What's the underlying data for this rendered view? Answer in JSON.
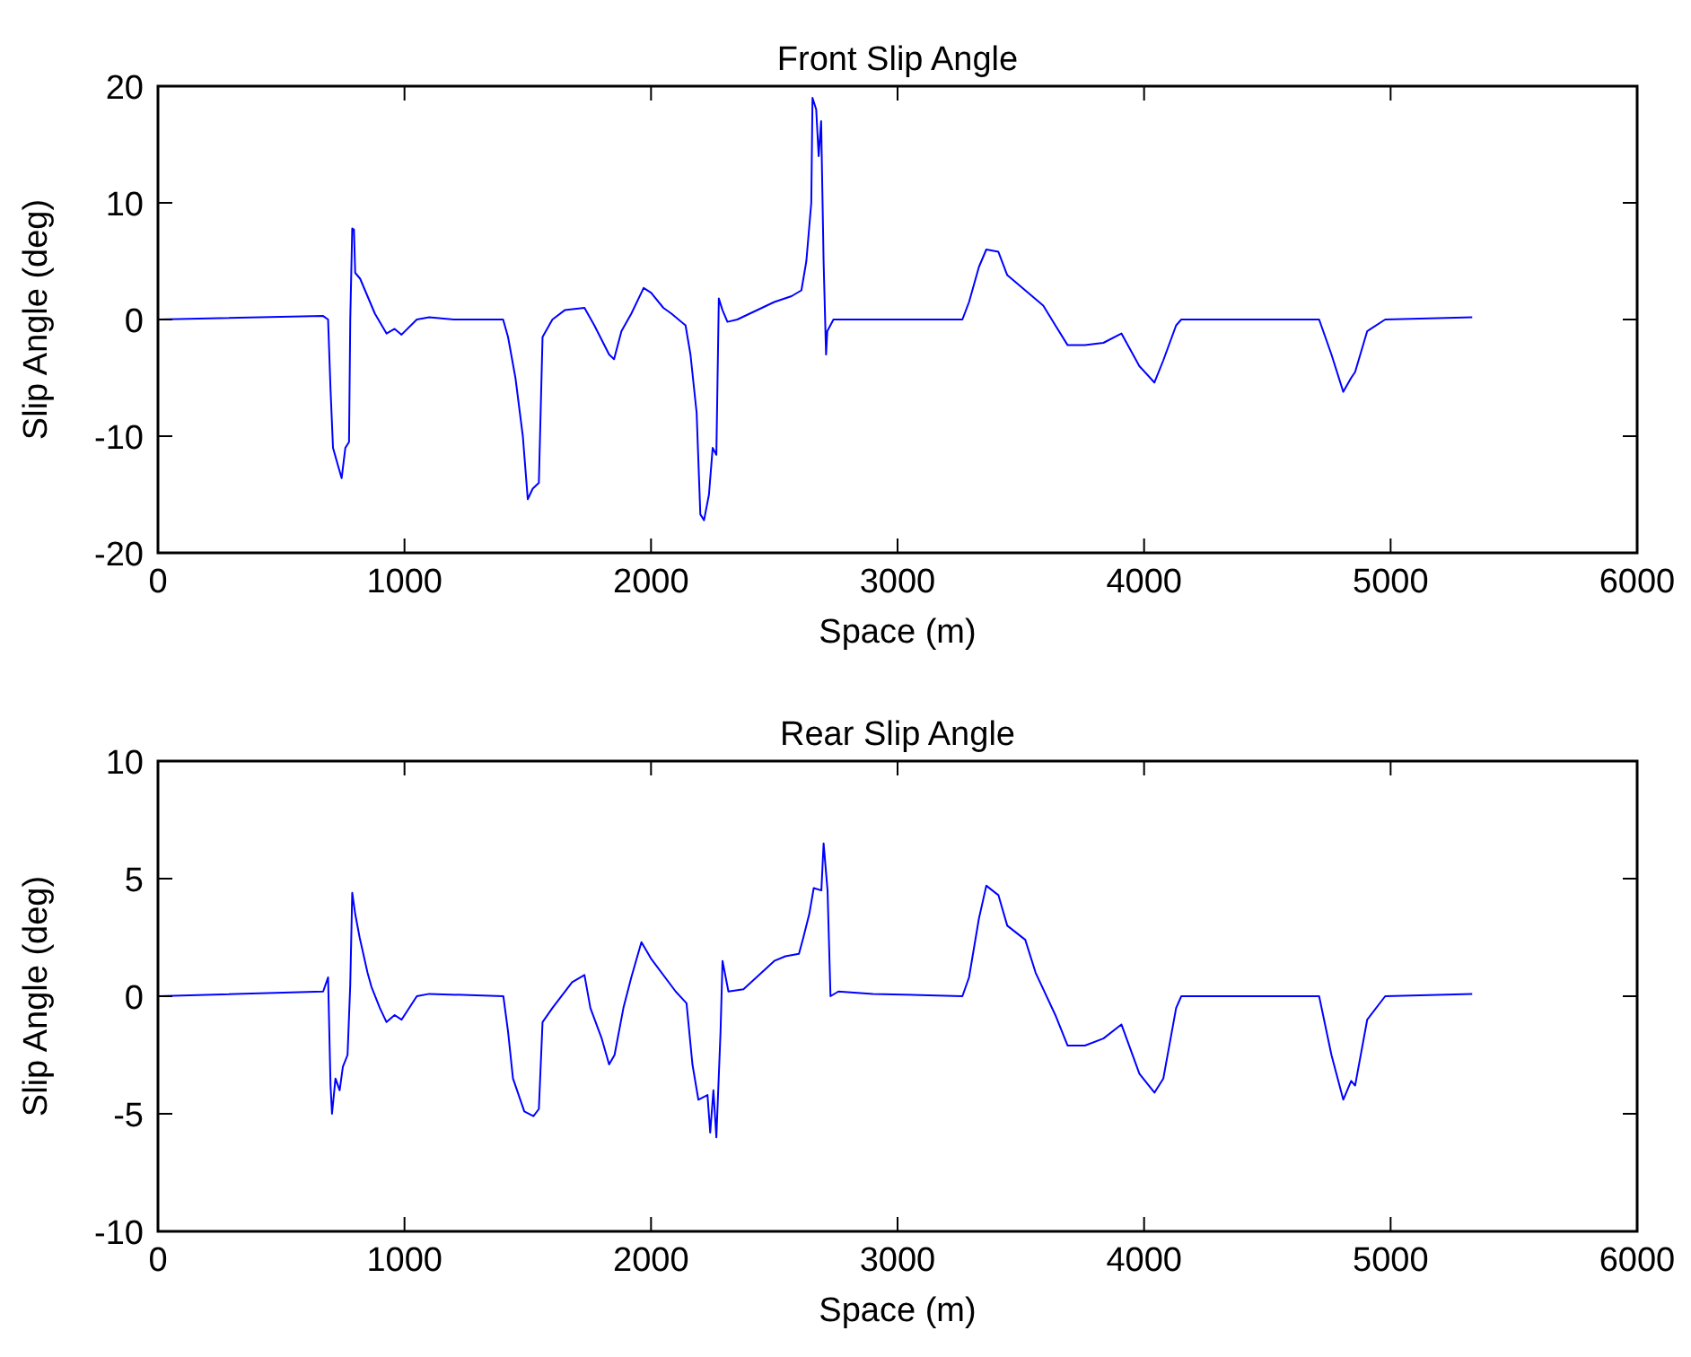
{
  "chart_data": [
    {
      "type": "line",
      "title": "Front Slip Angle",
      "xlabel": "Space (m)",
      "ylabel": "Slip Angle (deg)",
      "xlim": [
        0,
        6000
      ],
      "xticks": [
        0,
        1000,
        2000,
        3000,
        4000,
        5000,
        6000
      ],
      "ylim": [
        -20,
        20
      ],
      "yticks": [
        -20,
        -10,
        0,
        10,
        20
      ],
      "series": [
        {
          "color": "#0000ff",
          "x": [
            0,
            670,
            690,
            700,
            710,
            730,
            745,
            760,
            775,
            780,
            788,
            795,
            800,
            820,
            850,
            880,
            927,
            960,
            988,
            1050,
            1100,
            1200,
            1400,
            1420,
            1450,
            1480,
            1500,
            1520,
            1545,
            1560,
            1600,
            1650,
            1730,
            1770,
            1830,
            1850,
            1880,
            1920,
            1970,
            2000,
            2050,
            2083,
            2140,
            2160,
            2185,
            2200,
            2215,
            2235,
            2250,
            2265,
            2275,
            2290,
            2310,
            2350,
            2400,
            2500,
            2570,
            2610,
            2630,
            2650,
            2655,
            2670,
            2680,
            2690,
            2700,
            2710,
            2715,
            2740,
            2800,
            2861,
            3263,
            3290,
            3330,
            3360,
            3409,
            3445,
            3518,
            3591,
            3640,
            3690,
            3760,
            3835,
            3908,
            3981,
            4042,
            4078,
            4130,
            4151,
            4300,
            4710,
            4760,
            4808,
            4840,
            4856,
            4905,
            4978,
            5331
          ],
          "values": [
            0,
            0.3,
            0,
            -6,
            -11,
            -12.5,
            -13.6,
            -11,
            -10.5,
            0,
            7.8,
            7.7,
            4,
            3.5,
            2,
            0.5,
            -1.2,
            -0.8,
            -1.3,
            0,
            0.2,
            0,
            0,
            -1.5,
            -5,
            -10,
            -15.4,
            -14.5,
            -14,
            -1.5,
            0,
            0.8,
            1,
            -0.5,
            -3,
            -3.4,
            -1,
            0.5,
            2.7,
            2.3,
            1,
            0.5,
            -0.5,
            -3,
            -8,
            -16.7,
            -17.2,
            -15,
            -11,
            -11.6,
            1.8,
            0.8,
            -0.2,
            0,
            0.5,
            1.5,
            2,
            2.5,
            5,
            10,
            19,
            18,
            14,
            17,
            5,
            -3,
            -1,
            0,
            0,
            0,
            0,
            1.5,
            4.5,
            6,
            5.8,
            3.8,
            2.5,
            1.2,
            -0.5,
            -2.2,
            -2.2,
            -2,
            -1.2,
            -4,
            -5.4,
            -3.5,
            -0.5,
            0,
            0,
            0,
            -3,
            -6.2,
            -5,
            -4.5,
            -1,
            0,
            0.2
          ]
        }
      ]
    },
    {
      "type": "line",
      "title": "Rear Slip Angle",
      "xlabel": "Space (m)",
      "ylabel": "Slip Angle (deg)",
      "xlim": [
        0,
        6000
      ],
      "xticks": [
        0,
        1000,
        2000,
        3000,
        4000,
        5000,
        6000
      ],
      "ylim": [
        -10,
        10
      ],
      "yticks": [
        -10,
        -5,
        0,
        5,
        10
      ],
      "series": [
        {
          "color": "#0000ff",
          "x": [
            0,
            670,
            690,
            700,
            706,
            720,
            737,
            750,
            769,
            780,
            788,
            800,
            818,
            850,
            866,
            900,
            927,
            960,
            988,
            1050,
            1100,
            1401,
            1420,
            1440,
            1486,
            1523,
            1545,
            1560,
            1600,
            1680,
            1730,
            1754,
            1800,
            1830,
            1852,
            1888,
            1920,
            1961,
            2000,
            2100,
            2144,
            2168,
            2192,
            2229,
            2240,
            2253,
            2265,
            2282,
            2290,
            2314,
            2375,
            2500,
            2545,
            2600,
            2618,
            2642,
            2660,
            2691,
            2700,
            2716,
            2728,
            2760,
            2900,
            3263,
            3290,
            3330,
            3360,
            3409,
            3445,
            3518,
            3560,
            3591,
            3640,
            3690,
            3760,
            3835,
            3908,
            3981,
            4042,
            4078,
            4130,
            4151,
            4710,
            4760,
            4808,
            4840,
            4856,
            4905,
            4978,
            5331
          ],
          "values": [
            0,
            0.2,
            0.8,
            -3.8,
            -5,
            -3.5,
            -4,
            -3,
            -2.5,
            0.5,
            4.4,
            3.5,
            2.5,
            1,
            0.4,
            -0.5,
            -1.1,
            -0.8,
            -1,
            0,
            0.1,
            0,
            -1.5,
            -3.5,
            -4.9,
            -5.1,
            -4.8,
            -1.1,
            -0.5,
            0.6,
            0.9,
            -0.5,
            -1.8,
            -2.9,
            -2.5,
            -0.5,
            0.8,
            2.3,
            1.6,
            0.2,
            -0.3,
            -2.9,
            -4.4,
            -4.2,
            -5.8,
            -4,
            -6,
            -1.5,
            1.5,
            0.2,
            0.3,
            1.5,
            1.7,
            1.8,
            2.5,
            3.5,
            4.6,
            4.5,
            6.5,
            4.5,
            0,
            0.2,
            0.1,
            0,
            0.8,
            3.3,
            4.7,
            4.3,
            3,
            2.4,
            1,
            0.3,
            -0.8,
            -2.1,
            -2.1,
            -1.8,
            -1.2,
            -3.3,
            -4.1,
            -3.5,
            -0.5,
            0,
            0,
            -2.5,
            -4.4,
            -3.6,
            -3.8,
            -1,
            0,
            0.1
          ]
        }
      ]
    }
  ]
}
